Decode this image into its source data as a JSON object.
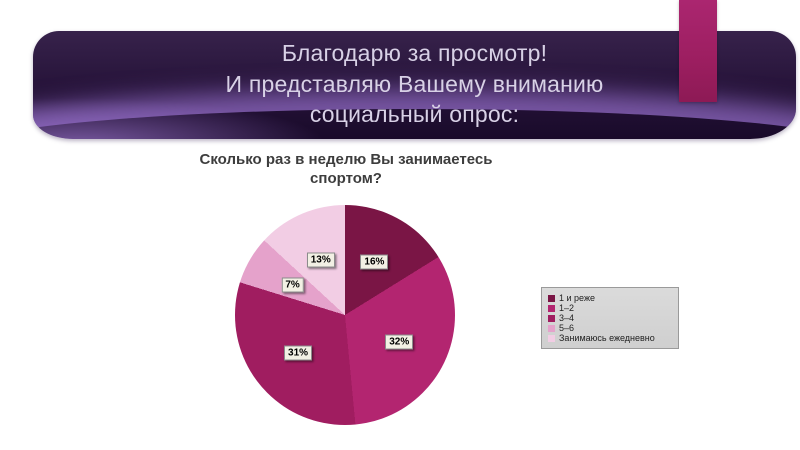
{
  "slide": {
    "title": "Благодарю за просмотр!\nИ представляю Вашему вниманию\nсоциальный опрос:"
  },
  "chart_data": {
    "type": "pie",
    "title": "Сколько раз в неделю Вы занимаетесь\nспортом?",
    "categories": [
      "1 и реже",
      "1–2",
      "3–4",
      "5–6",
      "Занимаюсь ежедневно"
    ],
    "values": [
      16,
      32,
      31,
      7,
      13
    ],
    "value_labels": [
      "16%",
      "32%",
      "31%",
      "7%",
      "13%"
    ],
    "colors": [
      "#7a1545",
      "#b32570",
      "#a01d60",
      "#e5a2cb",
      "#f2cde4"
    ],
    "legend_position": "right",
    "start_angle_deg": 0,
    "direction": "clockwise"
  },
  "theme": {
    "accent": "#9c1e60",
    "banner_dark": "#190a2a",
    "banner_glow": "#946ec8",
    "title_color": "#d8d1e6"
  }
}
